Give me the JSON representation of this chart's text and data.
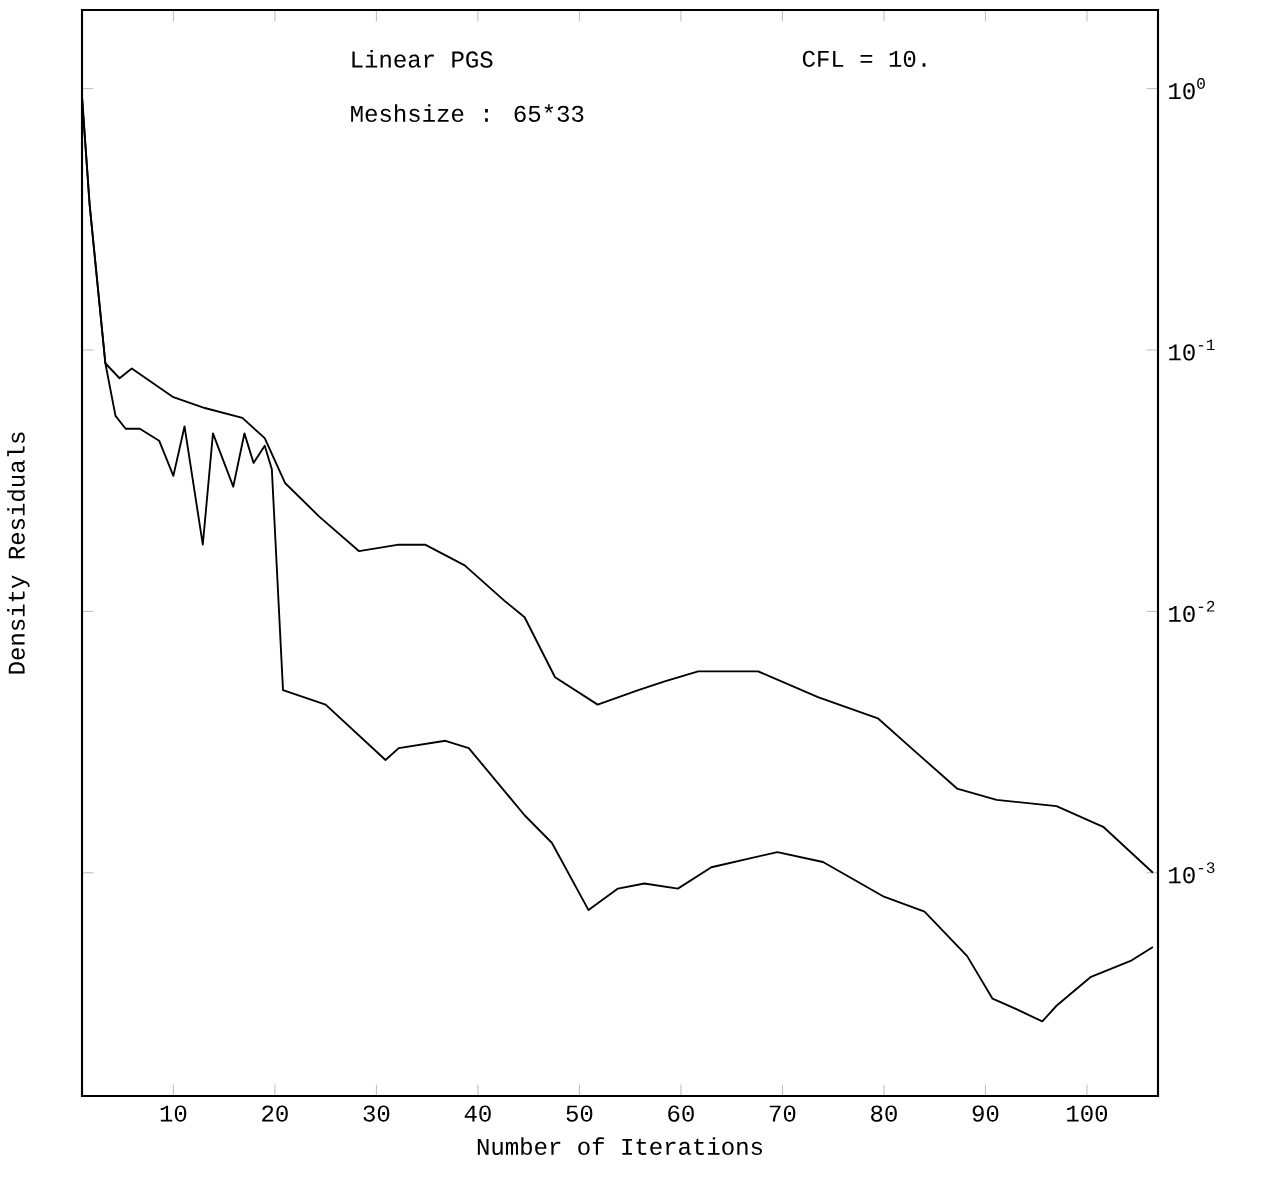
{
  "chart_data": {
    "type": "line",
    "xlabel": "Number of Iterations",
    "ylabel": "Density Residuals",
    "annotations": [
      "Linear PGS",
      "Meshsize :  65*33",
      "CFL =  10."
    ],
    "xlim": [
      1,
      107
    ],
    "xticks": [
      10,
      20,
      30,
      40,
      50,
      60,
      70,
      80,
      90,
      100
    ],
    "ylim": [
      0.00014,
      2
    ],
    "yticks": [
      {
        "value": 1,
        "label": "10$^{0}$"
      },
      {
        "value": 0.1,
        "label": "10$^{-1}$"
      },
      {
        "value": 0.01,
        "label": "10$^{-2}$"
      },
      {
        "value": 0.001,
        "label": "10$^{-3}$"
      }
    ],
    "log": "y",
    "marker": "none",
    "line_style": "solid",
    "series": [
      {
        "color": "#000000",
        "x": [
          1,
          1.75,
          3.3,
          4.7,
          5.9,
          10,
          13.1,
          16.8,
          19,
          21,
          24.4,
          28.3,
          32.2,
          34.8,
          38.7,
          42.6,
          44.6,
          47.6,
          51.8,
          55.8,
          58.4,
          61.7,
          67.6,
          73.5,
          79.4,
          82.7,
          87.2,
          91.1,
          97,
          101.6,
          106.5
        ],
        "values": [
          0.93,
          0.36,
          0.089,
          0.078,
          0.085,
          0.066,
          0.06,
          0.055,
          0.046,
          0.031,
          0.023,
          0.017,
          0.018,
          0.018,
          0.015,
          0.011,
          0.0095,
          0.0056,
          0.0044,
          0.005,
          0.0054,
          0.0059,
          0.0059,
          0.0047,
          0.0039,
          0.003,
          0.0021,
          0.0019,
          0.0018,
          0.0015,
          0.001
        ]
      },
      {
        "color": "#000000",
        "x": [
          1,
          1.75,
          3.3,
          4.3,
          5.3,
          6.7,
          8.6,
          10,
          11.1,
          12.9,
          13.9,
          15.9,
          17,
          17.9,
          19,
          19.7,
          20.8,
          25,
          30.9,
          32.2,
          36.8,
          39.1,
          44.6,
          47.3,
          50.9,
          53.8,
          56.4,
          59.7,
          63,
          69.5,
          74,
          80,
          84,
          88.2,
          90.7,
          93.1,
          95.6,
          97,
          100.4,
          104.3,
          106.5
        ],
        "values": [
          0.93,
          0.36,
          0.089,
          0.056,
          0.05,
          0.05,
          0.045,
          0.033,
          0.051,
          0.018,
          0.048,
          0.03,
          0.048,
          0.037,
          0.043,
          0.035,
          0.005,
          0.0044,
          0.0027,
          0.003,
          0.0032,
          0.003,
          0.00166,
          0.0013,
          0.00072,
          0.00087,
          0.00091,
          0.00087,
          0.00105,
          0.0012,
          0.0011,
          0.00081,
          0.00071,
          0.00048,
          0.00033,
          0.0003,
          0.00027,
          0.00031,
          0.0004,
          0.00046,
          0.00052
        ]
      }
    ]
  }
}
